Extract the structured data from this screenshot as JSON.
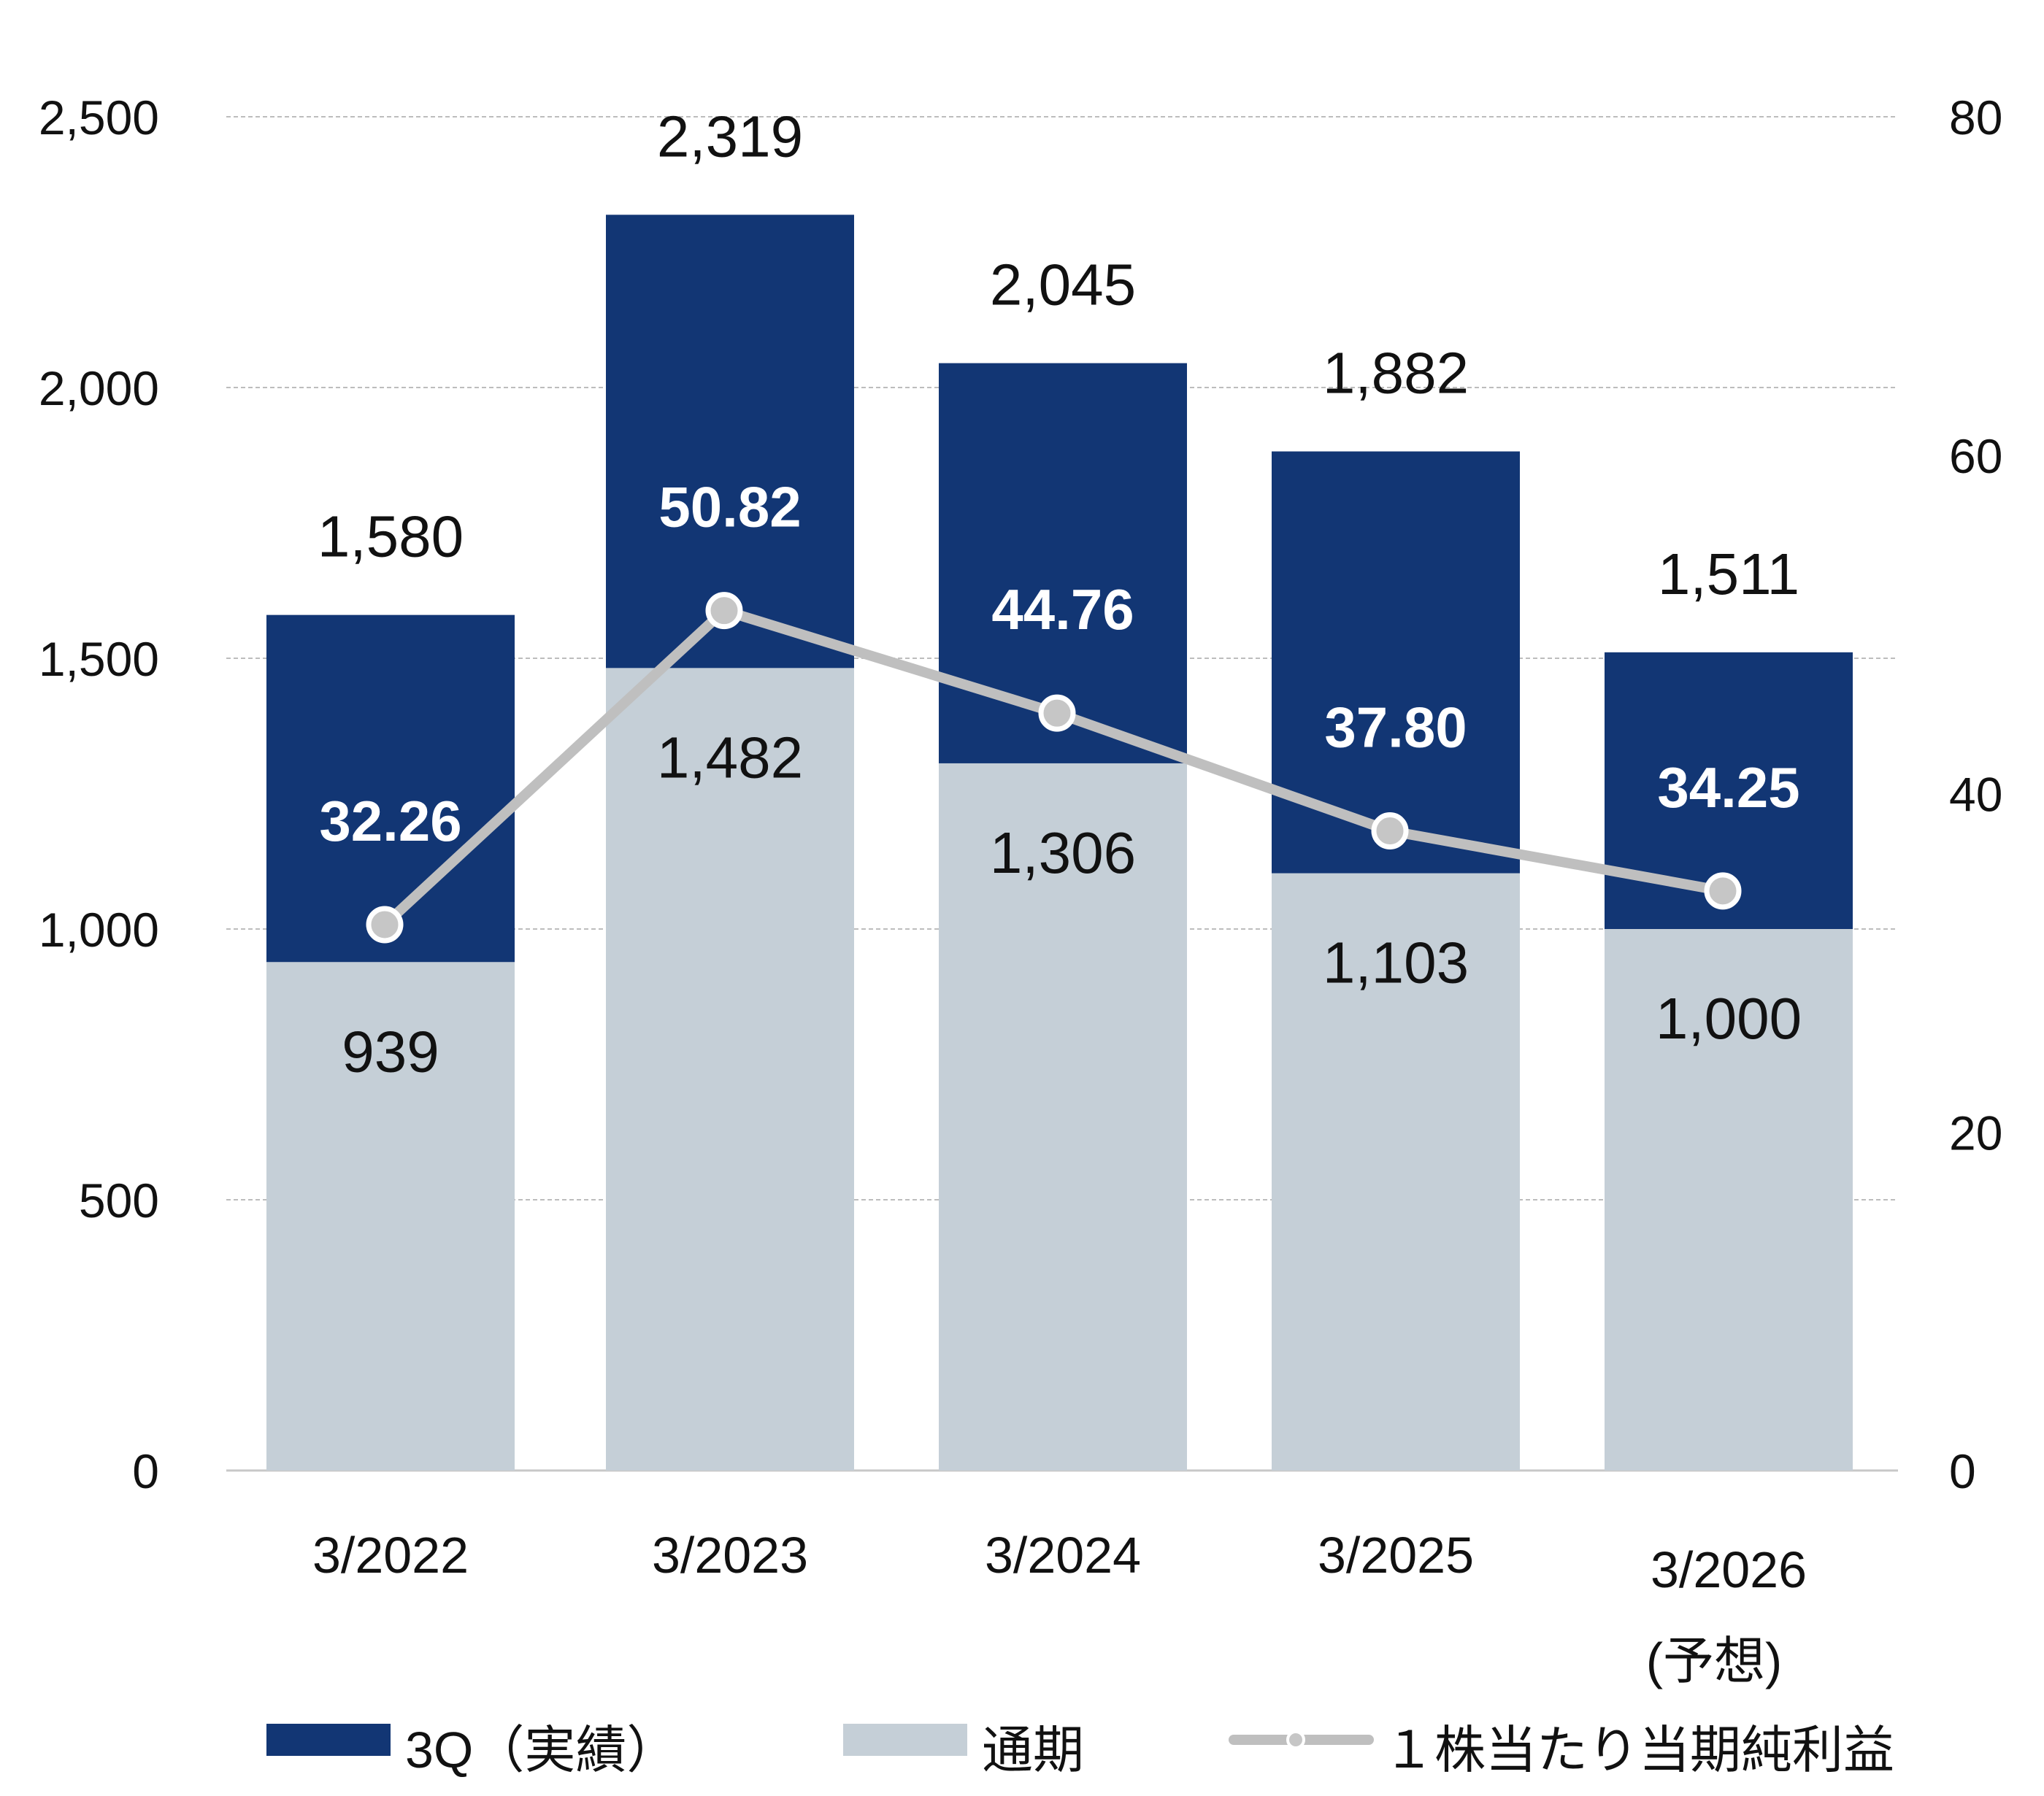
{
  "chart_data": {
    "type": "bar",
    "stacked": true,
    "categories": [
      "3/2022",
      "3/2023",
      "3/2024",
      "3/2025",
      "3/2026"
    ],
    "category_notes": [
      "",
      "",
      "",
      "",
      "(予想)"
    ],
    "series": [
      {
        "name": "通期",
        "kind": "bar",
        "color": "#c5cfd7",
        "values": [
          939,
          1482,
          1306,
          1103,
          1000
        ]
      },
      {
        "name": "3Q（実績）",
        "kind": "bar",
        "color": "#123674",
        "values": [
          641,
          837,
          739,
          779,
          511
        ]
      },
      {
        "name": "１株当たり当期純利益",
        "kind": "line",
        "axis": "right",
        "color": "#bfbfbf",
        "values": [
          32.26,
          50.82,
          44.76,
          37.8,
          34.25
        ]
      }
    ],
    "totals": [
      1580,
      2319,
      2045,
      1882,
      1511
    ],
    "total_labels": [
      "1,580",
      "2,319",
      "2,045",
      "1,882",
      "1,511"
    ],
    "full_year_labels": [
      "939",
      "1,482",
      "1,306",
      "1,103",
      "1,000"
    ],
    "eps_labels": [
      "32.26",
      "50.82",
      "44.76",
      "37.80",
      "34.25"
    ],
    "y_left": {
      "ylim": [
        0,
        2500
      ],
      "ticks": [
        0,
        500,
        1000,
        1500,
        2000,
        2500
      ],
      "tick_labels": [
        "0",
        "500",
        "1,000",
        "1,500",
        "2,000",
        "2,500"
      ]
    },
    "y_right": {
      "ylim": [
        0,
        80
      ],
      "ticks": [
        0,
        20,
        40,
        60,
        80
      ],
      "tick_labels": [
        "0",
        "20",
        "40",
        "60",
        "80"
      ]
    },
    "grid": true,
    "legend_position": "bottom",
    "legend": [
      "3Q（実績）",
      "通期",
      "１株当たり当期純利益"
    ]
  }
}
